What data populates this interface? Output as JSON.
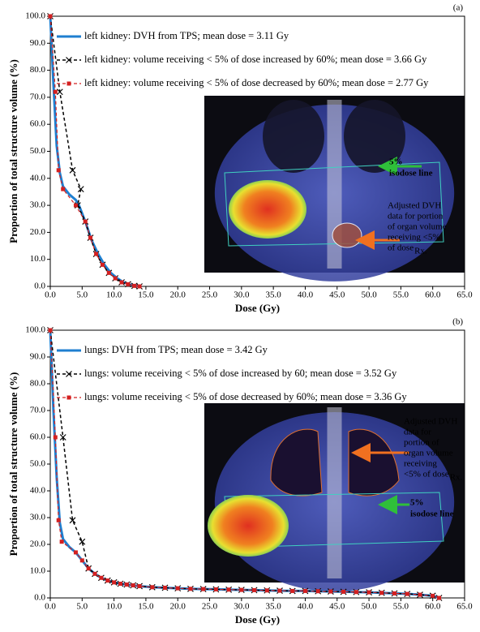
{
  "chart_data": [
    {
      "type": "line",
      "panel_label": "(a)",
      "xlabel": "Dose (Gy)",
      "ylabel": "Proportion of total structure volume (%)",
      "xlim": [
        0,
        65
      ],
      "ylim": [
        0,
        100
      ],
      "xticks": [
        {
          "value": 0,
          "label": "0.0"
        },
        {
          "value": 5,
          "label": "5.0"
        },
        {
          "value": 10,
          "label": "10.0"
        },
        {
          "value": 15,
          "label": "15.0"
        },
        {
          "value": 20,
          "label": "20.0"
        },
        {
          "value": 25,
          "label": "25.0"
        },
        {
          "value": 30,
          "label": "30.0"
        },
        {
          "value": 35,
          "label": "35.0"
        },
        {
          "value": 40,
          "label": "40.0"
        },
        {
          "value": 45,
          "label": "45.0"
        },
        {
          "value": 50,
          "label": "50.0"
        },
        {
          "value": 55,
          "label": "55.0"
        },
        {
          "value": 60,
          "label": "60.0"
        },
        {
          "value": 65,
          "label": "65.0"
        }
      ],
      "yticks": [
        {
          "value": 0,
          "label": "0.0"
        },
        {
          "value": 10,
          "label": "10.0"
        },
        {
          "value": 20,
          "label": "20.0"
        },
        {
          "value": 30,
          "label": "30.0"
        },
        {
          "value": 40,
          "label": "40.0"
        },
        {
          "value": 50,
          "label": "50.0"
        },
        {
          "value": 60,
          "label": "60.0"
        },
        {
          "value": 70,
          "label": "70.0"
        },
        {
          "value": 80,
          "label": "80.0"
        },
        {
          "value": 90,
          "label": "90.0"
        },
        {
          "value": 100,
          "label": "100.0"
        }
      ],
      "legend": "upper left",
      "series": [
        {
          "name": "left kidney: DVH from TPS; mean dose = 3.11 Gy",
          "color": "#1f7fd0",
          "dashed": false,
          "marker": null,
          "width": 3,
          "x": [
            0,
            0.5,
            1,
            1.5,
            2,
            3,
            4,
            4.5,
            5.5,
            6.5,
            7.5,
            8.5,
            9.5,
            10.5,
            11.5,
            12.5,
            13.5,
            14
          ],
          "values": [
            100,
            75,
            52,
            42,
            37,
            34,
            32,
            30,
            24,
            17,
            12,
            8,
            5,
            3,
            1.5,
            0.7,
            0.2,
            0
          ]
        },
        {
          "name": "left kidney: volume receiving < 5% of dose increased by 60%; mean dose = 3.66 Gy",
          "color": "#000000",
          "dashed": true,
          "marker": "x",
          "width": 1.5,
          "x": [
            0,
            1.5,
            3.5,
            4.8,
            4.3,
            5.5,
            6.3,
            7.2,
            8.2,
            9.2,
            10.2,
            11.2,
            12.2,
            13.2,
            14
          ],
          "values": [
            100,
            72,
            43,
            36,
            30,
            24,
            18,
            12,
            8,
            5,
            3,
            1.5,
            0.8,
            0.2,
            0
          ]
        },
        {
          "name": "left kidney: volume receiving < 5% of dose decreased by 60%; mean dose = 2.77 Gy",
          "color": "#d42020",
          "dashed": true,
          "marker": "square",
          "width": 1.2,
          "x": [
            0,
            0.8,
            1.3,
            2,
            4,
            5.5,
            6.3,
            7.2,
            8.2,
            9.2,
            10.2,
            11.2,
            12.2,
            13.2,
            14
          ],
          "values": [
            100,
            72,
            43,
            36,
            30,
            24,
            18,
            12,
            8,
            5,
            3,
            1.5,
            0.8,
            0.2,
            0
          ]
        }
      ],
      "annotations": [
        {
          "lines": [
            "5%",
            "isodose line"
          ],
          "color": "#2fbf3a"
        },
        {
          "lines": [
            "Adjusted DVH",
            "data  for portion",
            "of organ volume",
            "receiving  <5%",
            "of dose"
          ],
          "sub": "Rx.",
          "color": "#ffffff"
        }
      ]
    },
    {
      "type": "line",
      "panel_label": "(b)",
      "xlabel": "Dose (Gy)",
      "ylabel": "Proportion of total structure volume (%)",
      "xlim": [
        0,
        65
      ],
      "ylim": [
        0,
        100
      ],
      "xticks": [
        {
          "value": 0,
          "label": "0.0"
        },
        {
          "value": 5,
          "label": "5.0"
        },
        {
          "value": 10,
          "label": "10.0"
        },
        {
          "value": 15,
          "label": "15.0"
        },
        {
          "value": 20,
          "label": "20.0"
        },
        {
          "value": 25,
          "label": "25.0"
        },
        {
          "value": 30,
          "label": "30.0"
        },
        {
          "value": 35,
          "label": "35.0"
        },
        {
          "value": 40,
          "label": "40.0"
        },
        {
          "value": 45,
          "label": "45.0"
        },
        {
          "value": 50,
          "label": "50.0"
        },
        {
          "value": 55,
          "label": "55.0"
        },
        {
          "value": 60,
          "label": "60.0"
        },
        {
          "value": 65,
          "label": "65.0"
        }
      ],
      "yticks": [
        {
          "value": 0,
          "label": "0.0"
        },
        {
          "value": 10,
          "label": "10.0"
        },
        {
          "value": 20,
          "label": "20.0"
        },
        {
          "value": 30,
          "label": "30.0"
        },
        {
          "value": 40,
          "label": "40.0"
        },
        {
          "value": 50,
          "label": "50.0"
        },
        {
          "value": 60,
          "label": "60.0"
        },
        {
          "value": 70,
          "label": "70.0"
        },
        {
          "value": 80,
          "label": "80.0"
        },
        {
          "value": 90,
          "label": "90.0"
        },
        {
          "value": 100,
          "label": "100.0"
        }
      ],
      "legend": "upper left",
      "series": [
        {
          "name": "lungs: DVH from TPS; mean dose = 3.42 Gy",
          "color": "#1f7fd0",
          "dashed": false,
          "marker": null,
          "width": 3,
          "x": [
            0,
            0.5,
            1,
            1.5,
            2,
            3,
            4,
            5,
            6,
            7,
            8,
            9,
            10,
            11,
            12,
            13,
            14,
            16,
            18,
            20,
            22,
            24,
            26,
            28,
            30,
            32,
            34,
            36,
            38,
            40,
            42,
            44,
            46,
            48,
            50,
            52,
            54,
            56,
            58,
            60,
            61
          ],
          "values": [
            100,
            70,
            45,
            28,
            22,
            19,
            17,
            14,
            11,
            9,
            7.5,
            6.5,
            5.8,
            5.3,
            5,
            4.7,
            4.4,
            4,
            3.8,
            3.6,
            3.4,
            3.3,
            3.2,
            3.1,
            3,
            2.9,
            2.8,
            2.7,
            2.6,
            2.6,
            2.5,
            2.4,
            2.3,
            2.2,
            2.1,
            1.9,
            1.7,
            1.5,
            1.2,
            0.8,
            0
          ]
        },
        {
          "name": "lungs: volume receiving < 5% of dose increased by 60; mean dose = 3.52 Gy",
          "color": "#000000",
          "dashed": true,
          "marker": "x",
          "width": 1.5,
          "x": [
            0,
            2,
            3.5,
            5,
            6,
            7,
            8,
            9,
            10,
            11,
            12,
            13,
            14,
            16,
            18,
            20,
            22,
            24,
            26,
            28,
            30,
            32,
            34,
            36,
            38,
            40,
            42,
            44,
            46,
            48,
            50,
            52,
            54,
            56,
            58,
            60,
            61
          ],
          "values": [
            100,
            60,
            29,
            21,
            11,
            9,
            7.5,
            6.5,
            5.8,
            5.3,
            5,
            4.7,
            4.4,
            4,
            3.8,
            3.6,
            3.4,
            3.3,
            3.2,
            3.1,
            3,
            2.9,
            2.8,
            2.7,
            2.6,
            2.6,
            2.5,
            2.4,
            2.3,
            2.2,
            2.1,
            1.9,
            1.7,
            1.5,
            1.2,
            0.8,
            0
          ]
        },
        {
          "name": "lungs: volume receiving < 5% of dose decreased by 60%; mean dose = 3.36 Gy",
          "color": "#d42020",
          "dashed": true,
          "marker": "square",
          "width": 1.2,
          "x": [
            0,
            0.8,
            1.3,
            1.8,
            4,
            5,
            6,
            7,
            8,
            9,
            10,
            11,
            12,
            13,
            14,
            16,
            18,
            20,
            22,
            24,
            26,
            28,
            30,
            32,
            34,
            36,
            38,
            40,
            42,
            44,
            46,
            48,
            50,
            52,
            54,
            56,
            58,
            60,
            61
          ],
          "values": [
            100,
            60,
            29,
            21,
            17,
            14,
            11,
            9,
            7.5,
            6.5,
            5.8,
            5.3,
            5,
            4.7,
            4.4,
            4,
            3.8,
            3.6,
            3.4,
            3.3,
            3.2,
            3.1,
            3,
            2.9,
            2.8,
            2.7,
            2.6,
            2.6,
            2.5,
            2.4,
            2.3,
            2.2,
            2.1,
            1.9,
            1.7,
            1.5,
            1.2,
            0.8,
            0
          ]
        }
      ],
      "annotations": [
        {
          "lines": [
            "Adjusted DVH",
            "data  for",
            "portion of",
            "organ volume",
            "receiving",
            "<5% of dose"
          ],
          "sub": "Rx.",
          "color": "#ffffff"
        },
        {
          "lines": [
            "5%",
            "isodose line"
          ],
          "color": "#2fbf3a"
        }
      ]
    }
  ]
}
